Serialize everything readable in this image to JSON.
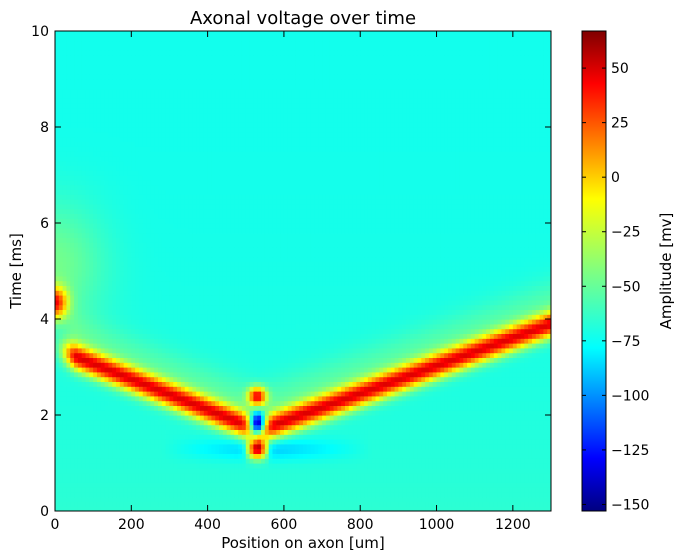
{
  "chart_data": {
    "type": "heatmap",
    "title": "Axonal voltage over time",
    "xlabel": "Position on axon [um]",
    "ylabel": "Time [ms]",
    "xlim": [
      0,
      1300
    ],
    "ylim": [
      0,
      10
    ],
    "x_ticks": [
      0,
      200,
      400,
      600,
      800,
      1000,
      1200
    ],
    "y_ticks": [
      0,
      2,
      4,
      6,
      8,
      10
    ],
    "colorbar": {
      "label": "Amplitude [mv]",
      "colormap": "jet",
      "range": [
        -153,
        67
      ],
      "ticks": [
        50,
        25,
        0,
        -25,
        -50,
        -75,
        -100,
        -125,
        -150
      ],
      "tick_labels": [
        "50",
        "25",
        "0",
        "−25",
        "−50",
        "−75",
        "−100",
        "−125",
        "−150"
      ]
    },
    "resting_potential": -65,
    "features": [
      {
        "name": "stimulation",
        "position": 530,
        "time_range": [
          1.1,
          2.6
        ],
        "description": "alternating bands: red ~1.3 ms, blue ~1.8 ms, red ~2.4 ms"
      },
      {
        "name": "backward-propagating spike",
        "from": [
          530,
          1.7
        ],
        "to": [
          60,
          3.2
        ],
        "peak": 40
      },
      {
        "name": "forward-propagating spike",
        "from": [
          540,
          1.7
        ],
        "to": [
          1300,
          3.9
        ],
        "peak": 40
      },
      {
        "name": "boundary response",
        "position": 0,
        "time": 4.35,
        "peak": 30
      },
      {
        "name": "hyperpolarization trough",
        "time": 1.3,
        "x_range": [
          280,
          830
        ],
        "min": -85
      }
    ]
  }
}
